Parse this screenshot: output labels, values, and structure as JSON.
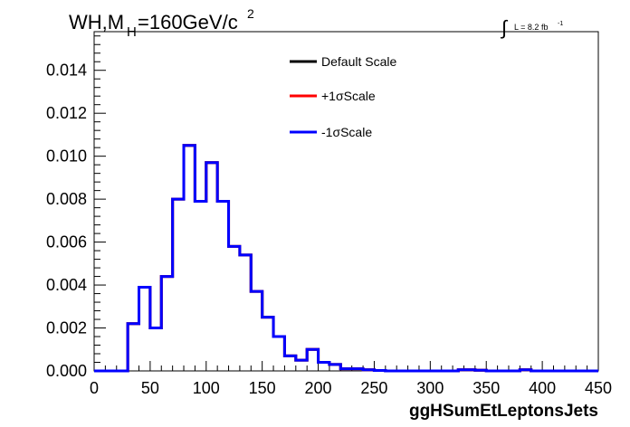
{
  "chart_data": {
    "type": "line",
    "drawstyle": "steps",
    "title_parts": {
      "main": "WH,M",
      "sub": "H",
      "rest": "=160GeV/c",
      "sup": "2"
    },
    "lumi_label": {
      "integral": "∫",
      "text": "L = 8.2 fb",
      "sup": "-1"
    },
    "xlabel": "ggHSumEtLeptonsJets",
    "ylabel": "",
    "xlim": [
      0,
      450
    ],
    "ylim": [
      0,
      0.0158
    ],
    "x_ticks": [
      "0",
      "50",
      "100",
      "150",
      "200",
      "250",
      "300",
      "350",
      "400",
      "450"
    ],
    "x_tick_values": [
      0,
      50,
      100,
      150,
      200,
      250,
      300,
      350,
      400,
      450
    ],
    "y_ticks": [
      "0.000",
      "0.002",
      "0.004",
      "0.006",
      "0.008",
      "0.010",
      "0.012",
      "0.014"
    ],
    "y_tick_values": [
      0,
      0.002,
      0.004,
      0.006,
      0.008,
      0.01,
      0.012,
      0.014
    ],
    "legend_position": "top-center",
    "bin_width": 5,
    "bin_edges_start": 0,
    "series": [
      {
        "name": "Default Scale",
        "color": "#000000",
        "values": [
          0,
          0,
          0,
          0,
          0,
          0,
          0.0022,
          0.0022,
          0.0039,
          0.0039,
          0.002,
          0.002,
          0.0044,
          0.0044,
          0.008,
          0.008,
          0.0105,
          0.0105,
          0.0079,
          0.0079,
          0.0097,
          0.0097,
          0.0079,
          0.0079,
          0.0058,
          0.0058,
          0.0054,
          0.0054,
          0.0037,
          0.0037,
          0.0025,
          0.0025,
          0.0016,
          0.0016,
          0.0007,
          0.0007,
          0.0005,
          0.0005,
          0.001,
          0.001,
          0.0004,
          0.0004,
          0.0003,
          0.0003,
          0.0001,
          0.0001,
          0.0001,
          0.0001,
          5e-05,
          5e-05,
          2e-05,
          2e-05,
          0,
          0,
          0,
          0,
          0,
          0,
          0,
          0,
          0,
          0,
          0,
          0,
          0,
          5e-05,
          5e-05,
          5e-05,
          3e-05,
          3e-05,
          0,
          0,
          0,
          0,
          0,
          0,
          5e-05,
          5e-05,
          0,
          0,
          0,
          0,
          0,
          0,
          0,
          0,
          0,
          0,
          0,
          0
        ]
      },
      {
        "name": "+1σScale",
        "color": "#ff0000",
        "values": [
          0,
          0,
          0,
          0,
          0,
          0,
          0.0022,
          0.0022,
          0.0039,
          0.0039,
          0.002,
          0.002,
          0.0044,
          0.0044,
          0.008,
          0.008,
          0.0105,
          0.0105,
          0.0079,
          0.0079,
          0.0097,
          0.0097,
          0.0079,
          0.0079,
          0.0058,
          0.0058,
          0.0054,
          0.0054,
          0.0037,
          0.0037,
          0.0025,
          0.0025,
          0.0016,
          0.0016,
          0.0007,
          0.0007,
          0.0005,
          0.0005,
          0.001,
          0.001,
          0.0004,
          0.0004,
          0.0003,
          0.0003,
          0.0001,
          0.0001,
          0.0001,
          0.0001,
          5e-05,
          5e-05,
          2e-05,
          2e-05,
          0,
          0,
          0,
          0,
          0,
          0,
          0,
          0,
          0,
          0,
          0,
          0,
          0,
          5e-05,
          5e-05,
          5e-05,
          3e-05,
          3e-05,
          0,
          0,
          0,
          0,
          0,
          0,
          5e-05,
          5e-05,
          0,
          0,
          0,
          0,
          0,
          0,
          0,
          0,
          0,
          0,
          0,
          0
        ]
      },
      {
        "name": "-1σScale",
        "color": "#0000ff",
        "values": [
          0,
          0,
          0,
          0,
          0,
          0,
          0.0022,
          0.0022,
          0.0039,
          0.0039,
          0.002,
          0.002,
          0.0044,
          0.0044,
          0.008,
          0.008,
          0.0105,
          0.0105,
          0.0079,
          0.0079,
          0.0097,
          0.0097,
          0.0079,
          0.0079,
          0.0058,
          0.0058,
          0.0054,
          0.0054,
          0.0037,
          0.0037,
          0.0025,
          0.0025,
          0.0016,
          0.0016,
          0.0007,
          0.0007,
          0.0005,
          0.0005,
          0.001,
          0.001,
          0.0004,
          0.0004,
          0.0003,
          0.0003,
          0.0001,
          0.0001,
          0.0001,
          0.0001,
          5e-05,
          5e-05,
          2e-05,
          2e-05,
          0,
          0,
          0,
          0,
          0,
          0,
          0,
          0,
          0,
          0,
          0,
          0,
          0,
          5e-05,
          5e-05,
          5e-05,
          3e-05,
          3e-05,
          0,
          0,
          0,
          0,
          0,
          0,
          5e-05,
          5e-05,
          0,
          0,
          0,
          0,
          0,
          0,
          0,
          0,
          0,
          0,
          0,
          0
        ]
      }
    ]
  }
}
